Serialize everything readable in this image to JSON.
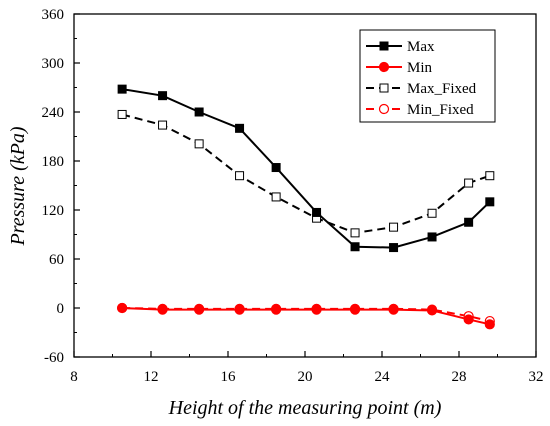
{
  "chart_data": {
    "type": "line",
    "title": "",
    "xlabel": "Height of the measuring point (m)",
    "ylabel": "Pressure (kPa)",
    "xlim": [
      8,
      32
    ],
    "ylim": [
      -60,
      360
    ],
    "xticks": [
      "8",
      "12",
      "16",
      "20",
      "24",
      "28",
      "32"
    ],
    "yticks": [
      "-60",
      "0",
      "60",
      "120",
      "180",
      "240",
      "300",
      "360"
    ],
    "grid": false,
    "legend_position": "top-right",
    "series": [
      {
        "name": "Max",
        "color": "#000000",
        "line": "solid",
        "marker": "filled-square",
        "points": [
          [
            10.5,
            268
          ],
          [
            12.6,
            260
          ],
          [
            14.5,
            240
          ],
          [
            16.6,
            220
          ],
          [
            18.5,
            172
          ],
          [
            20.6,
            117
          ],
          [
            22.6,
            75
          ],
          [
            24.6,
            74
          ],
          [
            26.6,
            87
          ],
          [
            28.5,
            105
          ],
          [
            29.6,
            130
          ]
        ]
      },
      {
        "name": "Min",
        "color": "#ff0000",
        "line": "solid",
        "marker": "filled-circle",
        "points": [
          [
            10.5,
            0
          ],
          [
            12.6,
            -2
          ],
          [
            14.5,
            -2
          ],
          [
            16.6,
            -2
          ],
          [
            18.5,
            -2
          ],
          [
            20.6,
            -2
          ],
          [
            22.6,
            -2
          ],
          [
            24.6,
            -2
          ],
          [
            26.6,
            -3
          ],
          [
            28.5,
            -14
          ],
          [
            29.6,
            -20
          ]
        ]
      },
      {
        "name": "Max_Fixed",
        "color": "#000000",
        "line": "dashed",
        "marker": "open-square",
        "points": [
          [
            10.5,
            237
          ],
          [
            12.6,
            224
          ],
          [
            14.5,
            201
          ],
          [
            16.6,
            162
          ],
          [
            18.5,
            136
          ],
          [
            20.6,
            110
          ],
          [
            22.6,
            92
          ],
          [
            24.6,
            99
          ],
          [
            26.6,
            116
          ],
          [
            28.5,
            153
          ],
          [
            29.6,
            162
          ]
        ]
      },
      {
        "name": "Min_Fixed",
        "color": "#ff0000",
        "line": "dashed",
        "marker": "open-circle",
        "points": [
          [
            10.5,
            0
          ],
          [
            12.6,
            -1
          ],
          [
            14.5,
            -1
          ],
          [
            16.6,
            -1
          ],
          [
            18.5,
            -1
          ],
          [
            20.6,
            -1
          ],
          [
            22.6,
            -1
          ],
          [
            24.6,
            -1
          ],
          [
            26.6,
            -2
          ],
          [
            28.5,
            -10
          ],
          [
            29.6,
            -16
          ]
        ]
      }
    ]
  }
}
